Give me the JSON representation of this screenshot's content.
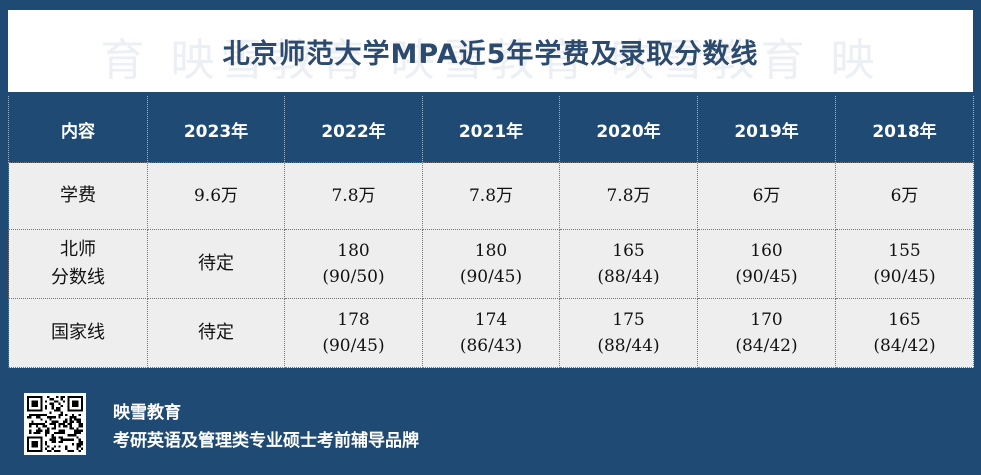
{
  "title": "北京师范大学MPA近5年学费及录取分数线",
  "watermark": "育 映雪教育 映雪教育 映雪教育 映",
  "table": {
    "headers": [
      "内容",
      "2023年",
      "2022年",
      "2021年",
      "2020年",
      "2019年",
      "2018年"
    ],
    "rows": [
      {
        "label": [
          "学费"
        ],
        "cells": [
          [
            "9.6万"
          ],
          [
            "7.8万"
          ],
          [
            "7.8万"
          ],
          [
            "7.8万"
          ],
          [
            "6万"
          ],
          [
            "6万"
          ]
        ]
      },
      {
        "label": [
          "北师",
          "分数线"
        ],
        "cells": [
          [
            "待定"
          ],
          [
            "180",
            "(90/50)"
          ],
          [
            "180",
            "(90/45)"
          ],
          [
            "165",
            "(88/44)"
          ],
          [
            "160",
            "(90/45)"
          ],
          [
            "155",
            "(90/45)"
          ]
        ]
      },
      {
        "label": [
          "国家线"
        ],
        "cells": [
          [
            "待定"
          ],
          [
            "178",
            "(90/45)"
          ],
          [
            "174",
            "(86/43)"
          ],
          [
            "175",
            "(88/44)"
          ],
          [
            "170",
            "(84/42)"
          ],
          [
            "165",
            "(84/42)"
          ]
        ]
      }
    ]
  },
  "footer": {
    "brand": "映雪教育",
    "slogan": "考研英语及管理类专业硕士考前辅导品牌",
    "qr_icon": "qr-code-icon"
  },
  "colors": {
    "navy": "#1f4a74",
    "title_text": "#2b4a6d",
    "cell_bg": "#eeeeee"
  }
}
